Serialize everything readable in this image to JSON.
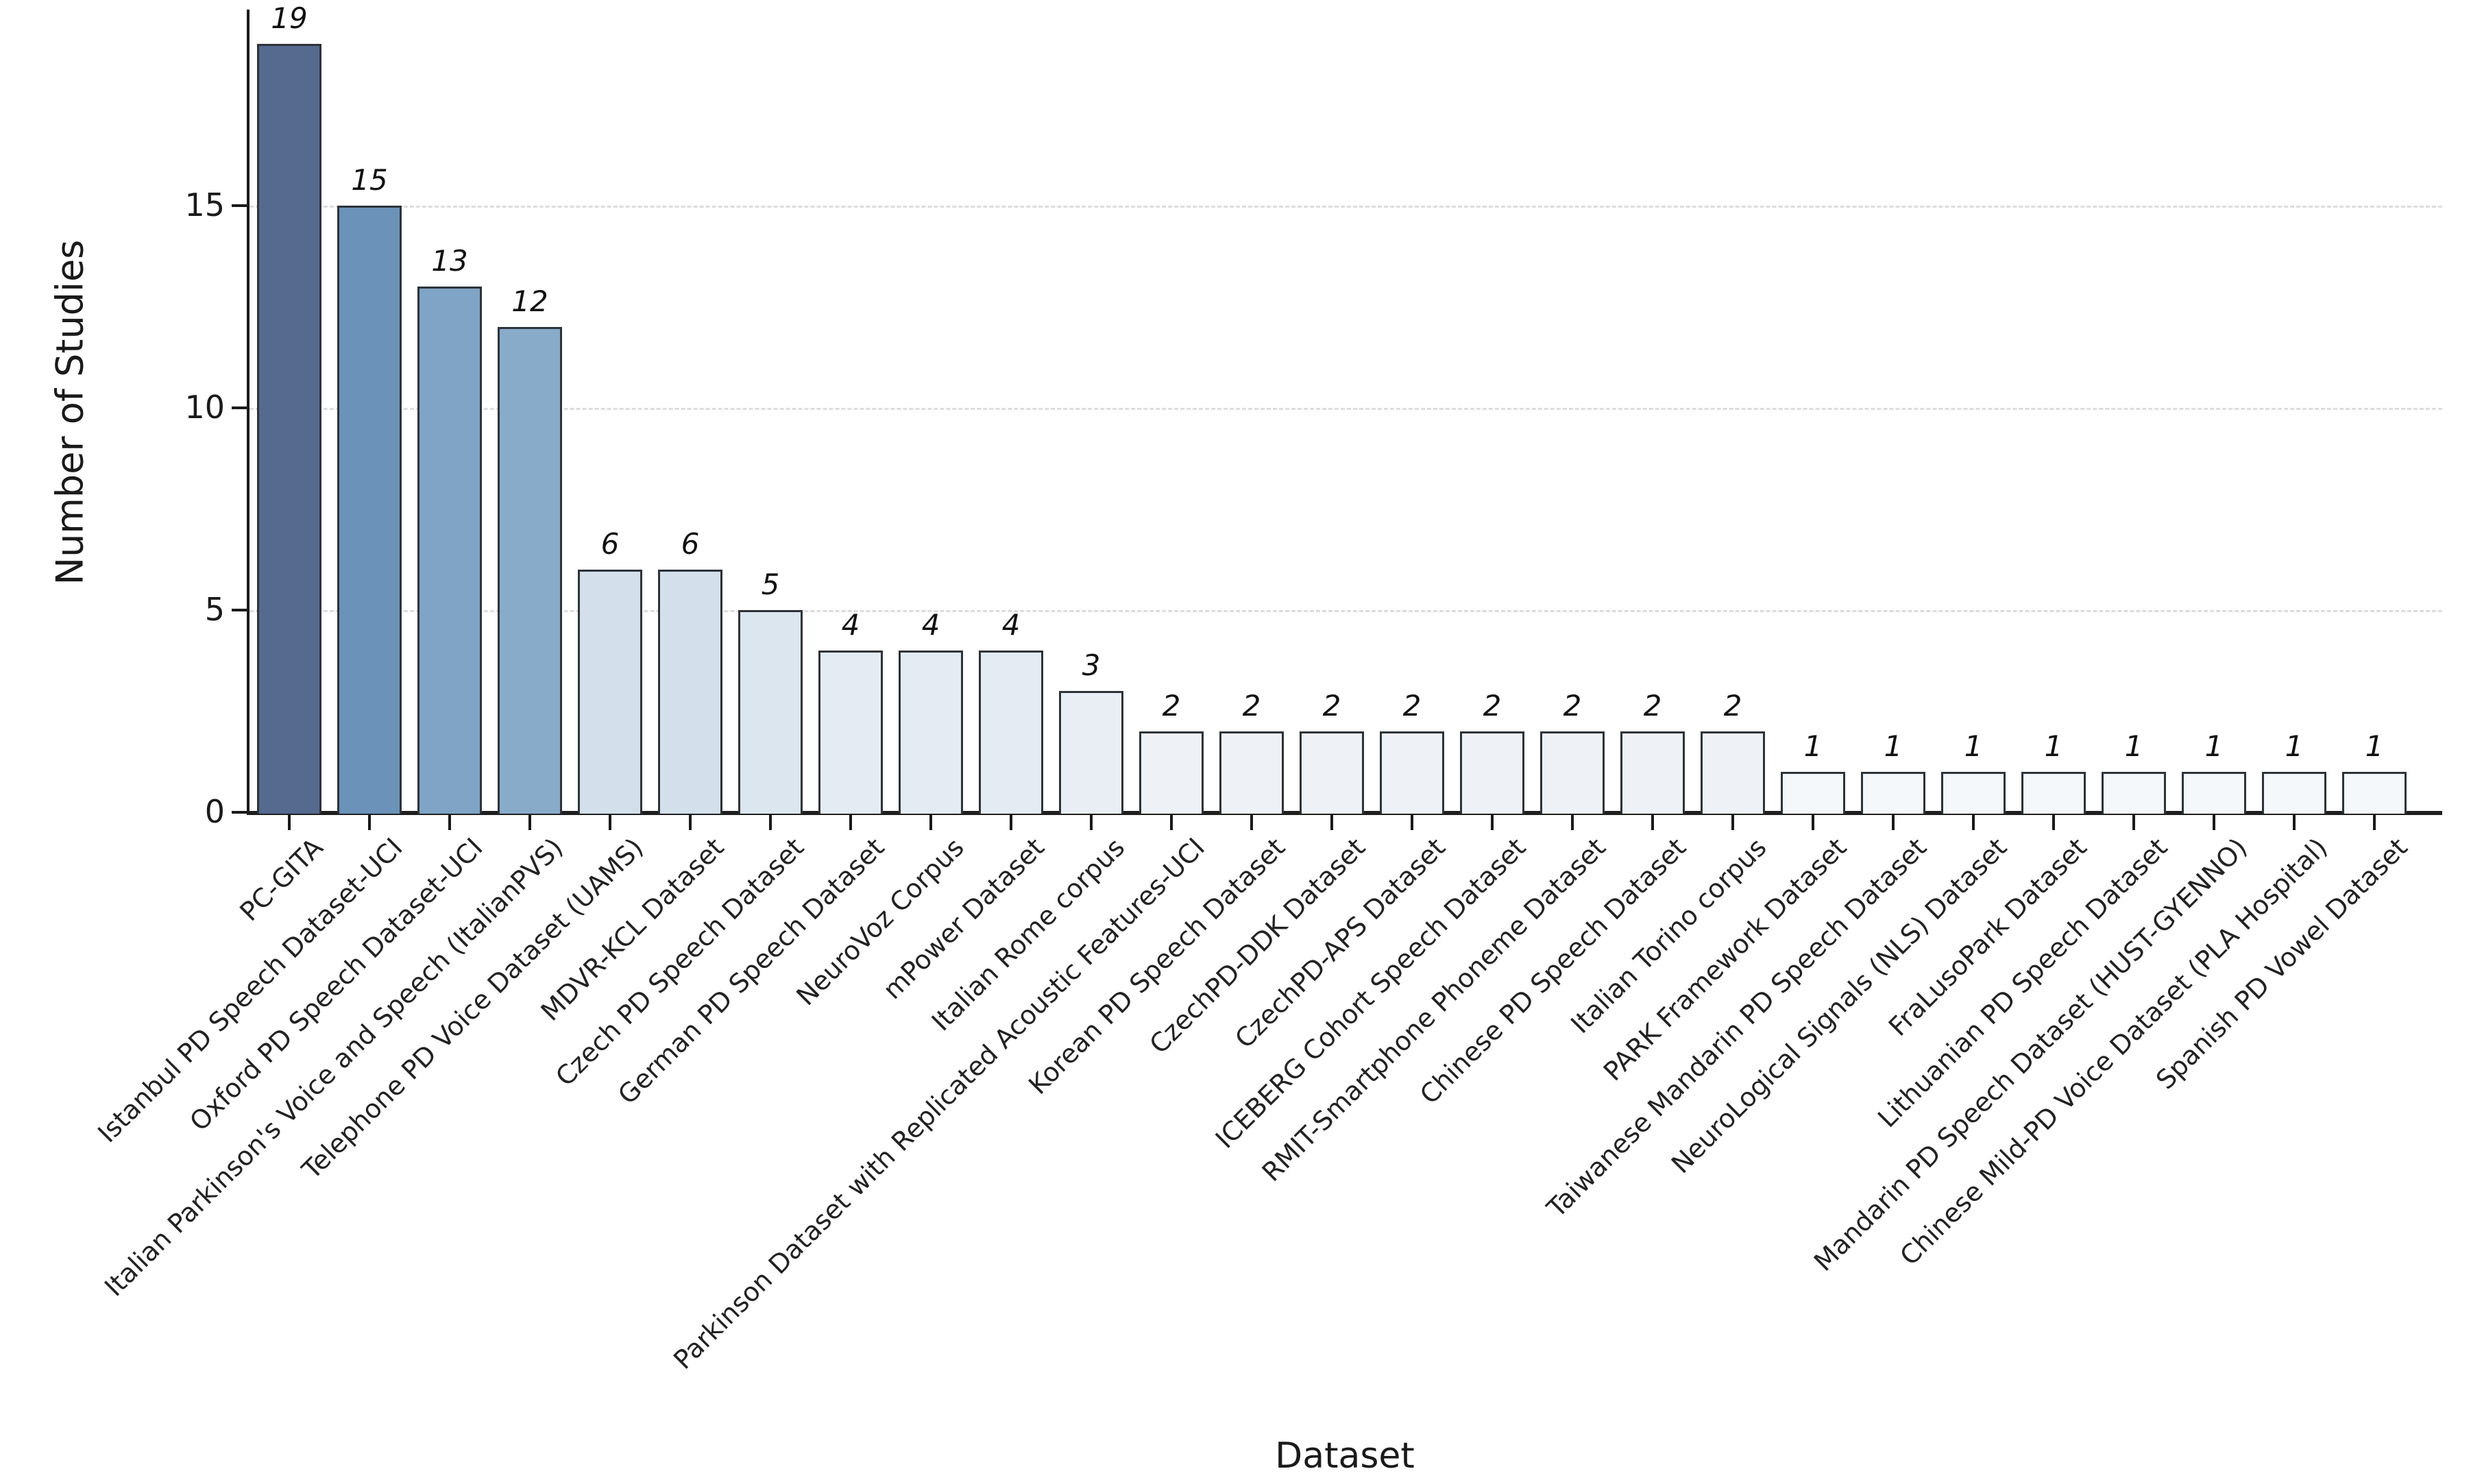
{
  "chart_data": {
    "type": "bar",
    "title": "",
    "xlabel": "Dataset",
    "ylabel": "Number of Studies",
    "categories": [
      "PC-GITA",
      "Istanbul PD Speech Dataset-UCI",
      "Oxford PD Speech Dataset-UCI",
      "Italian Parkinson's Voice and Speech (ItalianPVS)",
      "Telephone PD Voice Dataset (UAMS)",
      "MDVR-KCL Dataset",
      "Czech PD Speech Dataset",
      "German PD Speech Dataset",
      "NeuroVoz Corpus",
      "mPower Dataset",
      "Italian Rome corpus",
      "Parkinson Dataset with Replicated Acoustic Features-UCI",
      "Korean PD Speech Dataset",
      "CzechPD-DDK Dataset",
      "CzechPD-APS Dataset",
      "ICEBERG Cohort Speech Dataset",
      "RMIT-Smartphone Phoneme Dataset",
      "Chinese PD Speech Dataset",
      "Italian Torino corpus",
      "PARK Framework Dataset",
      "Taiwanese Mandarin PD Speech Dataset",
      "NeuroLogical Signals (NLS) Dataset",
      "FraLusoPark Dataset",
      "Lithuanian PD Speech Dataset",
      "Mandarin PD Speech Dataset (HUST-GYENNO)",
      "Chinese Mild-PD Voice Dataset (PLA Hospital)",
      "Spanish PD Vowel Dataset"
    ],
    "values": [
      19,
      15,
      13,
      12,
      6,
      6,
      5,
      4,
      4,
      4,
      3,
      2,
      2,
      2,
      2,
      2,
      2,
      2,
      2,
      1,
      1,
      1,
      1,
      1,
      1,
      1,
      1
    ],
    "bar_colors": [
      "#566a90",
      "#6b92b8",
      "#7fa4c5",
      "#88abca",
      "#d3e0eb",
      "#d3e0eb",
      "#dce6ef",
      "#e4ebf2",
      "#e4ebf2",
      "#e4ebf2",
      "#e9eef4",
      "#eef2f7",
      "#eef2f7",
      "#eef2f7",
      "#eef2f7",
      "#eef2f7",
      "#eef2f7",
      "#eef2f7",
      "#eef2f7",
      "#f5f8fb",
      "#f5f8fb",
      "#f5f8fb",
      "#f5f8fb",
      "#f5f8fb",
      "#f5f8fb",
      "#f5f8fb",
      "#f5f8fb"
    ],
    "bar_edge_color": "#2e3338",
    "value_labels_style": "italic",
    "yticks": [
      0,
      5,
      10,
      15
    ],
    "ylim": [
      0,
      19.8
    ],
    "grid": "horizontal-dashed",
    "gridline_color": "#dcdcdc",
    "legend_position": "none",
    "background": "#ffffff"
  }
}
